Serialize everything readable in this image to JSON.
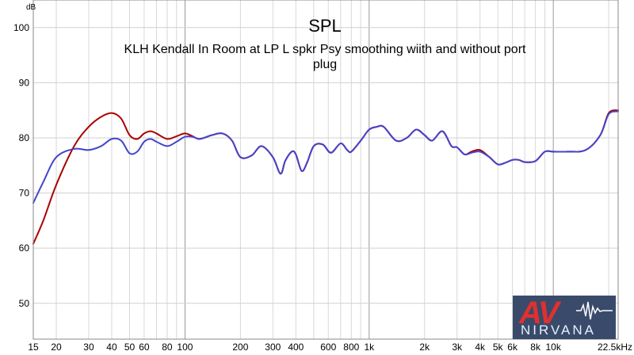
{
  "chart_data": {
    "type": "line",
    "title": "SPL",
    "subtitle": "KLH Kendall In Room at LP L spkr Psy smoothing wiith and without port plug",
    "ylabel": "dB",
    "xlabel": "",
    "xscale": "log",
    "xlim": [
      15,
      22500
    ],
    "ylim": [
      43.5,
      105
    ],
    "grid": true,
    "x_ticks": [
      15,
      20,
      30,
      40,
      50,
      60,
      80,
      100,
      200,
      300,
      400,
      600,
      800,
      1000,
      2000,
      3000,
      4000,
      5000,
      6000,
      8000,
      10000,
      22500
    ],
    "x_tick_labels": [
      "15",
      "20",
      "30",
      "40",
      "50",
      "60",
      "80",
      "100",
      "200",
      "300",
      "400",
      "600",
      "800",
      "1k",
      "2k",
      "3k",
      "4k",
      "5k",
      "6k",
      "8k",
      "10k",
      "22.5kHz"
    ],
    "y_ticks": [
      50,
      60,
      70,
      80,
      90,
      100
    ],
    "y_tick_labels": [
      "50",
      "60",
      "70",
      "80",
      "90",
      "100"
    ],
    "series": [
      {
        "color": "#aa0000",
        "x": [
          15,
          17,
          20,
          25,
          30,
          35,
          40,
          45,
          50,
          55,
          60,
          65,
          70,
          80,
          90,
          100,
          110,
          120,
          140,
          160,
          180,
          200,
          230,
          260,
          300,
          330,
          350,
          380,
          400,
          430,
          460,
          500,
          560,
          620,
          700,
          760,
          800,
          900,
          1000,
          1100,
          1200,
          1400,
          1600,
          1800,
          2000,
          2200,
          2500,
          2800,
          3000,
          3300,
          3600,
          4000,
          4500,
          5000,
          5500,
          6000,
          6500,
          7000,
          8000,
          9000,
          10000,
          12000,
          15000,
          18000,
          20000,
          22500
        ],
        "values": [
          60.8,
          65,
          71.5,
          78.5,
          82,
          83.8,
          84.5,
          83.5,
          80.5,
          79.8,
          80.8,
          81.2,
          80.8,
          79.8,
          80.3,
          80.8,
          80.3,
          79.8,
          80.5,
          80.8,
          79.5,
          76.5,
          76.8,
          78.5,
          76.5,
          73.5,
          75.8,
          77.5,
          77,
          74,
          75.5,
          78.5,
          78.8,
          77.3,
          79,
          77.8,
          77.5,
          79.5,
          81.5,
          82,
          82,
          79.5,
          80,
          81.5,
          80.5,
          79.5,
          81.2,
          78.5,
          78.3,
          77,
          77.5,
          77.8,
          76.5,
          75.2,
          75.5,
          76,
          76,
          75.6,
          75.8,
          77.5,
          77.5,
          77.5,
          77.8,
          80.5,
          84.5,
          85
        ]
      },
      {
        "color": "#4444cc",
        "x": [
          15,
          17,
          20,
          25,
          30,
          35,
          40,
          45,
          50,
          55,
          60,
          65,
          70,
          80,
          90,
          100,
          110,
          120,
          140,
          160,
          180,
          200,
          230,
          260,
          300,
          330,
          350,
          380,
          400,
          430,
          460,
          500,
          560,
          620,
          700,
          760,
          800,
          900,
          1000,
          1100,
          1200,
          1400,
          1600,
          1800,
          2000,
          2200,
          2500,
          2800,
          3000,
          3300,
          3600,
          4000,
          4500,
          5000,
          5500,
          6000,
          6500,
          7000,
          8000,
          9000,
          10000,
          12000,
          15000,
          18000,
          20000,
          22500
        ],
        "values": [
          68.2,
          72,
          76.5,
          78,
          77.8,
          78.5,
          79.8,
          79.5,
          77.2,
          77.5,
          79.3,
          79.8,
          79.3,
          78.5,
          79.3,
          80.2,
          80.2,
          79.8,
          80.5,
          80.8,
          79.5,
          76.5,
          76.8,
          78.5,
          76.5,
          73.5,
          75.8,
          77.5,
          77,
          74,
          75.5,
          78.5,
          78.8,
          77.3,
          79,
          77.8,
          77.5,
          79.5,
          81.5,
          82,
          82,
          79.5,
          80,
          81.5,
          80.5,
          79.5,
          81.2,
          78.5,
          78.3,
          77,
          77.3,
          77.5,
          76.5,
          75.2,
          75.5,
          76,
          76,
          75.6,
          75.8,
          77.5,
          77.5,
          77.5,
          77.8,
          80.5,
          84.3,
          84.8
        ]
      }
    ]
  },
  "watermark": {
    "logo_letters": "AV",
    "logo_word": "NIRVANA"
  }
}
